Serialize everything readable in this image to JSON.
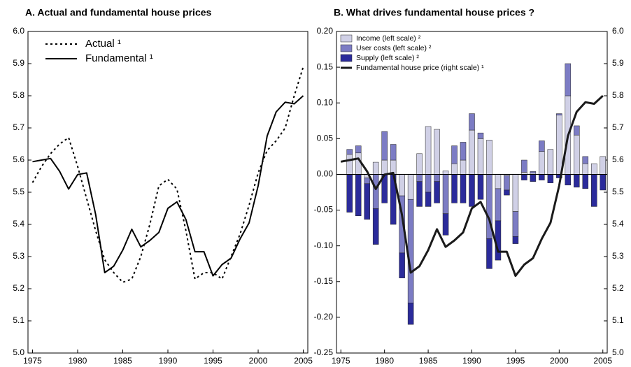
{
  "chart_data": [
    {
      "type": "line",
      "title": "A. Actual and fundamental house prices",
      "x": [
        1975,
        1976,
        1977,
        1978,
        1979,
        1980,
        1981,
        1982,
        1983,
        1984,
        1985,
        1986,
        1987,
        1988,
        1989,
        1990,
        1991,
        1992,
        1993,
        1994,
        1995,
        1996,
        1997,
        1998,
        1999,
        2000,
        2001,
        2002,
        2003,
        2004,
        2005
      ],
      "series": [
        {
          "name": "Actual ¹",
          "color": "#000000",
          "style": "dotted",
          "values": [
            5.53,
            5.58,
            5.62,
            5.65,
            5.67,
            5.58,
            5.48,
            5.38,
            5.29,
            5.25,
            5.22,
            5.23,
            5.3,
            5.4,
            5.52,
            5.54,
            5.51,
            5.38,
            5.23,
            5.25,
            5.25,
            5.23,
            5.3,
            5.37,
            5.46,
            5.56,
            5.63,
            5.66,
            5.7,
            5.8,
            5.89
          ]
        },
        {
          "name": "Fundamental ¹",
          "color": "#000000",
          "style": "solid",
          "values": [
            5.595,
            5.6,
            5.605,
            5.565,
            5.51,
            5.555,
            5.56,
            5.43,
            5.25,
            5.27,
            5.32,
            5.385,
            5.33,
            5.35,
            5.375,
            5.45,
            5.47,
            5.415,
            5.315,
            5.315,
            5.24,
            5.275,
            5.295,
            5.355,
            5.405,
            5.52,
            5.675,
            5.75,
            5.78,
            5.775,
            5.8
          ]
        }
      ],
      "xlim": [
        1974.5,
        2005.5
      ],
      "xticks": [
        1975,
        1980,
        1985,
        1990,
        1995,
        2000,
        2005
      ],
      "ylim": [
        5.0,
        6.0
      ],
      "yticks": [
        {
          "value": 5.0,
          "label": "5.0"
        },
        5.1,
        5.2,
        5.3,
        5.4,
        5.5,
        5.6,
        5.7,
        5.8,
        5.9,
        {
          "value": 6.0,
          "label": "6.0"
        }
      ],
      "legend": "top-left"
    },
    {
      "type": "bar-line",
      "title": "B. What drives fundamental house prices ?",
      "x": [
        1975,
        1976,
        1977,
        1978,
        1979,
        1980,
        1981,
        1982,
        1983,
        1984,
        1985,
        1986,
        1987,
        1988,
        1989,
        1990,
        1991,
        1992,
        1993,
        1994,
        1995,
        1996,
        1997,
        1998,
        1999,
        2000,
        2001,
        2002,
        2003,
        2004,
        2005
      ],
      "series": [
        {
          "name": "Income (left scale) ²",
          "color": "#d0d0e6",
          "values": [
            null,
            0.028,
            0.03,
            -0.005,
            0.017,
            0.02,
            0.02,
            -0.03,
            -0.035,
            0.029,
            0.067,
            0.063,
            0.005,
            0.015,
            0.02,
            0.062,
            0.05,
            0.048,
            -0.02,
            -0.002,
            -0.052,
            0.003,
            0.002,
            0.032,
            0.035,
            0.083,
            0.11,
            0.055,
            0.015,
            0.015,
            0.025
          ]
        },
        {
          "name": "User costs (left scale) ²",
          "color": "#7c7cc4",
          "values": [
            null,
            0.007,
            0.01,
            -0.008,
            -0.048,
            0.04,
            0.022,
            -0.08,
            -0.145,
            -0.01,
            -0.025,
            -0.01,
            -0.055,
            0.025,
            0.025,
            0.023,
            0.008,
            -0.09,
            -0.045,
            -0.02,
            -0.035,
            0.017,
            0.002,
            0.015,
            0.0,
            0.002,
            0.045,
            0.013,
            0.01,
            0.0,
            0.0
          ]
        },
        {
          "name": "Supply (left scale) ²",
          "color": "#2b2b9b",
          "values": [
            null,
            -0.053,
            -0.058,
            -0.05,
            -0.05,
            -0.04,
            -0.07,
            -0.035,
            -0.03,
            -0.035,
            -0.02,
            -0.03,
            -0.03,
            -0.04,
            -0.04,
            -0.045,
            -0.035,
            -0.042,
            -0.055,
            -0.007,
            -0.01,
            -0.008,
            -0.01,
            -0.008,
            -0.012,
            -0.005,
            -0.015,
            -0.018,
            -0.02,
            -0.045,
            -0.022
          ]
        },
        {
          "name": "Fundamental house price (right scale) ¹",
          "color": "#1a1a1a",
          "axis": "y2",
          "values": [
            5.595,
            5.6,
            5.605,
            5.565,
            5.51,
            5.555,
            5.56,
            5.43,
            5.25,
            5.27,
            5.32,
            5.385,
            5.33,
            5.35,
            5.375,
            5.45,
            5.47,
            5.415,
            5.315,
            5.315,
            5.24,
            5.275,
            5.295,
            5.355,
            5.405,
            5.52,
            5.675,
            5.75,
            5.78,
            5.775,
            5.8
          ]
        }
      ],
      "xlim": [
        1974.5,
        2005.5
      ],
      "xticks": [
        1975,
        1980,
        1985,
        1990,
        1995,
        2000,
        2005
      ],
      "ylim": [
        -0.25,
        0.2
      ],
      "yticks": [
        -0.25,
        {
          "value": -0.2,
          "label": "-0.20"
        },
        -0.15,
        {
          "value": -0.1,
          "label": "-0.10"
        },
        -0.05,
        {
          "value": 0,
          "label": "0.00"
        },
        0.05,
        {
          "value": 0.1,
          "label": "0.10"
        },
        0.15,
        {
          "value": 0.2,
          "label": "0.20"
        }
      ],
      "y2lim": [
        5.0,
        6.0
      ],
      "y2ticks": [
        {
          "value": 5.0,
          "label": "5.0"
        },
        5.1,
        5.2,
        5.3,
        5.4,
        5.5,
        5.6,
        5.7,
        5.8,
        5.9,
        {
          "value": 6.0,
          "label": "6.0"
        }
      ],
      "legend": "top-left"
    }
  ]
}
